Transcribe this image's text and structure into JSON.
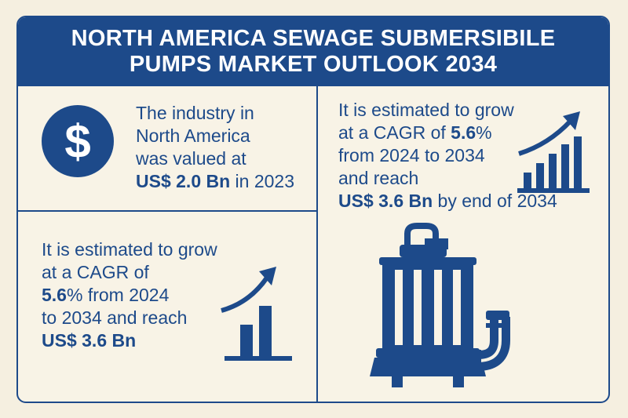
{
  "header": {
    "line1": "NORTH AMERICA SEWAGE SUBMERSIBILE",
    "line2": "PUMPS MARKET OUTLOOK 2034"
  },
  "panel_value": {
    "icon": "dollar-sign-icon",
    "l1": "The industry in",
    "l2": "North America",
    "l3": "was valued at",
    "l4_bold": "US$ 2.0 Bn",
    "l4_rest": " in 2023"
  },
  "panel_growth_left": {
    "icon": "growth-chart-icon",
    "l1": "It is estimated to grow",
    "l2": "at a CAGR of",
    "l3_bold": "5.6",
    "l3_rest": "% from 2024",
    "l4": "to 2034 and reach",
    "l5_bold": "US$ 3.6 Bn"
  },
  "panel_growth_right": {
    "icon": "growth-chart-icon",
    "l1": "It is estimated to grow",
    "l2_pre": "at a CAGR of ",
    "l2_bold": "5.6",
    "l2_rest": "%",
    "l3": "from 2024 to 2034",
    "l4": "and reach",
    "l5_bold": "US$ 3.6 Bn",
    "l5_rest": " by end of 2034"
  },
  "pump_icon": "submersible-pump-icon",
  "colors": {
    "primary": "#1d4a8a",
    "background": "#f5efe0"
  }
}
